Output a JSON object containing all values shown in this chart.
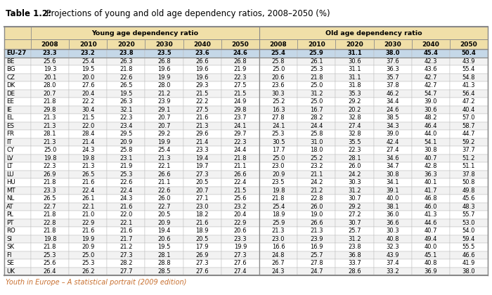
{
  "title_bold": "Table 1.2:",
  "title_rest": " Projections of young and old age dependency ratios, 2008–2050 (%)",
  "footer": "Youth in Europe – A statistical portrait (2009 edition)",
  "col_groups": [
    "Young age dependency ratio",
    "Old age dependency ratio"
  ],
  "years": [
    "2008",
    "2010",
    "2020",
    "2030",
    "2040",
    "2050"
  ],
  "countries": [
    "EU-27",
    "BE",
    "BG",
    "CZ",
    "DK",
    "DE",
    "EE",
    "IE",
    "EL",
    "ES",
    "FR",
    "IT",
    "CY",
    "LV",
    "LT",
    "LU",
    "HU",
    "MT",
    "NL",
    "AT",
    "PL",
    "PT",
    "RO",
    "SI",
    "SK",
    "FI",
    "SE",
    "UK"
  ],
  "young": [
    [
      23.3,
      23.2,
      23.8,
      23.5,
      23.6,
      24.6
    ],
    [
      25.6,
      25.4,
      26.3,
      26.8,
      26.6,
      26.8
    ],
    [
      19.3,
      19.5,
      21.8,
      19.6,
      19.6,
      21.9
    ],
    [
      20.1,
      20.0,
      22.6,
      19.9,
      19.6,
      22.3
    ],
    [
      28.0,
      27.6,
      26.5,
      28.0,
      29.3,
      27.5
    ],
    [
      20.7,
      20.4,
      19.5,
      21.2,
      21.5,
      21.5
    ],
    [
      21.8,
      22.2,
      26.3,
      23.9,
      22.2,
      24.9
    ],
    [
      29.8,
      30.4,
      32.1,
      29.1,
      27.5,
      29.8
    ],
    [
      21.3,
      21.5,
      22.3,
      20.7,
      21.6,
      23.7
    ],
    [
      21.3,
      22.0,
      23.4,
      20.7,
      21.3,
      24.1
    ],
    [
      28.1,
      28.4,
      29.5,
      29.2,
      29.6,
      29.7
    ],
    [
      21.3,
      21.4,
      20.9,
      19.9,
      21.4,
      22.3
    ],
    [
      25.0,
      24.3,
      25.8,
      25.4,
      23.3,
      24.4
    ],
    [
      19.8,
      19.8,
      23.1,
      21.3,
      19.4,
      21.8
    ],
    [
      22.3,
      21.3,
      21.9,
      22.1,
      19.7,
      21.1
    ],
    [
      26.9,
      26.5,
      25.3,
      26.6,
      27.3,
      26.6
    ],
    [
      21.8,
      21.6,
      22.6,
      21.1,
      20.5,
      22.4
    ],
    [
      23.3,
      22.4,
      22.4,
      22.6,
      20.7,
      21.5
    ],
    [
      26.5,
      26.1,
      24.3,
      26.0,
      27.1,
      25.6
    ],
    [
      22.7,
      22.1,
      21.6,
      22.7,
      23.0,
      23.2
    ],
    [
      21.8,
      21.0,
      22.0,
      20.5,
      18.2,
      20.4
    ],
    [
      22.8,
      22.9,
      22.1,
      20.9,
      21.6,
      22.9
    ],
    [
      21.8,
      21.6,
      21.6,
      19.4,
      18.9,
      20.6
    ],
    [
      19.8,
      19.9,
      21.7,
      20.6,
      20.5,
      23.3
    ],
    [
      21.8,
      20.9,
      21.2,
      19.5,
      17.9,
      19.9
    ],
    [
      25.3,
      25.0,
      27.3,
      28.1,
      26.9,
      27.3
    ],
    [
      25.6,
      25.3,
      28.2,
      28.8,
      27.3,
      27.6
    ],
    [
      26.4,
      26.2,
      27.7,
      28.5,
      27.6,
      27.4
    ]
  ],
  "old": [
    [
      25.4,
      25.9,
      31.1,
      38.0,
      45.4,
      50.4
    ],
    [
      25.8,
      26.1,
      30.6,
      37.6,
      42.3,
      43.9
    ],
    [
      25.0,
      25.3,
      31.1,
      36.3,
      43.6,
      55.4
    ],
    [
      20.6,
      21.8,
      31.1,
      35.7,
      42.7,
      54.8
    ],
    [
      23.6,
      25.0,
      31.8,
      37.8,
      42.7,
      41.3
    ],
    [
      30.3,
      31.2,
      35.3,
      46.2,
      54.7,
      56.4
    ],
    [
      25.2,
      25.0,
      29.2,
      34.4,
      39.0,
      47.2
    ],
    [
      16.3,
      16.7,
      20.2,
      24.6,
      30.6,
      40.4
    ],
    [
      27.8,
      28.2,
      32.8,
      38.5,
      48.2,
      57.0
    ],
    [
      24.1,
      24.4,
      27.4,
      34.3,
      46.4,
      58.7
    ],
    [
      25.3,
      25.8,
      32.8,
      39.0,
      44.0,
      44.7
    ],
    [
      30.5,
      31.0,
      35.5,
      42.4,
      54.1,
      59.2
    ],
    [
      17.7,
      18.0,
      22.3,
      27.4,
      30.8,
      37.7
    ],
    [
      25.0,
      25.2,
      28.1,
      34.6,
      40.7,
      51.2
    ],
    [
      23.0,
      23.2,
      26.0,
      34.7,
      42.8,
      51.1
    ],
    [
      20.9,
      21.1,
      24.2,
      30.8,
      36.3,
      37.8
    ],
    [
      23.5,
      24.2,
      30.3,
      34.1,
      40.1,
      50.8
    ],
    [
      19.8,
      21.2,
      31.2,
      39.1,
      41.7,
      49.8
    ],
    [
      21.8,
      22.8,
      30.7,
      40.0,
      46.8,
      45.6
    ],
    [
      25.4,
      26.0,
      29.2,
      38.1,
      46.0,
      48.3
    ],
    [
      18.9,
      19.0,
      27.2,
      36.0,
      41.3,
      55.7
    ],
    [
      25.9,
      26.6,
      30.7,
      36.6,
      44.6,
      53.0
    ],
    [
      21.3,
      21.3,
      25.7,
      30.3,
      40.7,
      54.0
    ],
    [
      23.0,
      23.9,
      31.2,
      40.8,
      49.4,
      59.4
    ],
    [
      16.6,
      16.9,
      23.8,
      32.3,
      40.0,
      55.5
    ],
    [
      24.8,
      25.7,
      36.8,
      43.9,
      45.1,
      46.6
    ],
    [
      26.7,
      27.8,
      33.7,
      37.4,
      40.8,
      41.9
    ],
    [
      24.3,
      24.7,
      28.6,
      33.2,
      36.9,
      38.0
    ]
  ],
  "header_bg": "#f0dfa8",
  "eu27_bg": "#c5d8e8",
  "row_bg_odd": "#ffffff",
  "row_bg_even": "#f2f2f2",
  "border_dark": "#888888",
  "border_light": "#bbbbbb",
  "footer_color": "#c87030",
  "title_bold_size": 8.5,
  "title_rest_size": 8.5,
  "footer_size": 7.0,
  "header_fontsize": 6.8,
  "year_fontsize": 6.5,
  "data_fontsize": 6.0,
  "country_fontsize": 6.2
}
